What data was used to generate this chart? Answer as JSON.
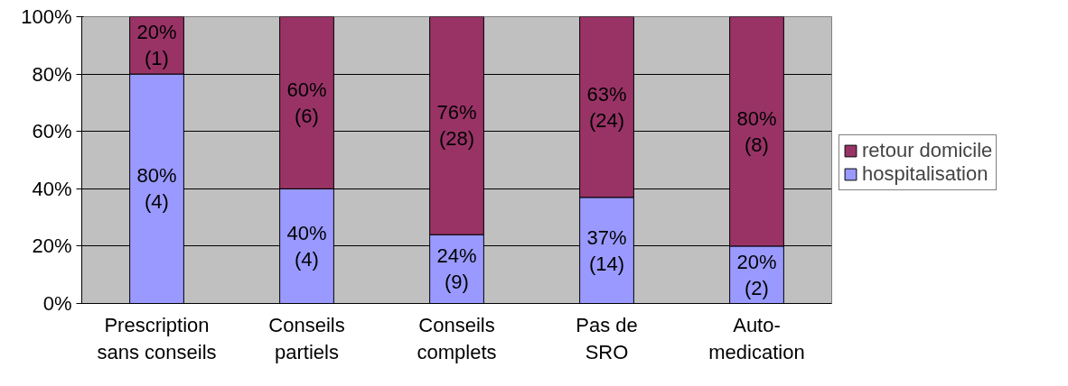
{
  "chart_data": {
    "type": "bar",
    "stacked": true,
    "categories": [
      "Prescription\nsans conseils",
      "Conseils\npartiels",
      "Conseils\ncomplets",
      "Pas de\nSRO",
      "Auto-\nmedication"
    ],
    "series": [
      {
        "name": "hospitalisation",
        "color": "#9999ff",
        "values": [
          80,
          40,
          24,
          37,
          20
        ],
        "value_labels": [
          "80%\n(4)",
          "40%\n(4)",
          "24%\n(9)",
          "37%\n(14)",
          "20%\n(2)"
        ]
      },
      {
        "name": "retour domicile",
        "color": "#993366",
        "values": [
          20,
          60,
          76,
          63,
          80
        ],
        "value_labels": [
          "20%\n(1)",
          "60%\n(6)",
          "76%\n(28)",
          "63%\n(24)",
          "80%\n(8)"
        ]
      }
    ],
    "ylim": [
      0,
      100
    ],
    "yticks": [
      {
        "value": 0,
        "label": "0%"
      },
      {
        "value": 20,
        "label": "20%"
      },
      {
        "value": 40,
        "label": "40%"
      },
      {
        "value": 60,
        "label": "60%"
      },
      {
        "value": 80,
        "label": "80%"
      },
      {
        "value": 100,
        "label": "100%"
      }
    ],
    "grid": "y",
    "legend": "right"
  }
}
